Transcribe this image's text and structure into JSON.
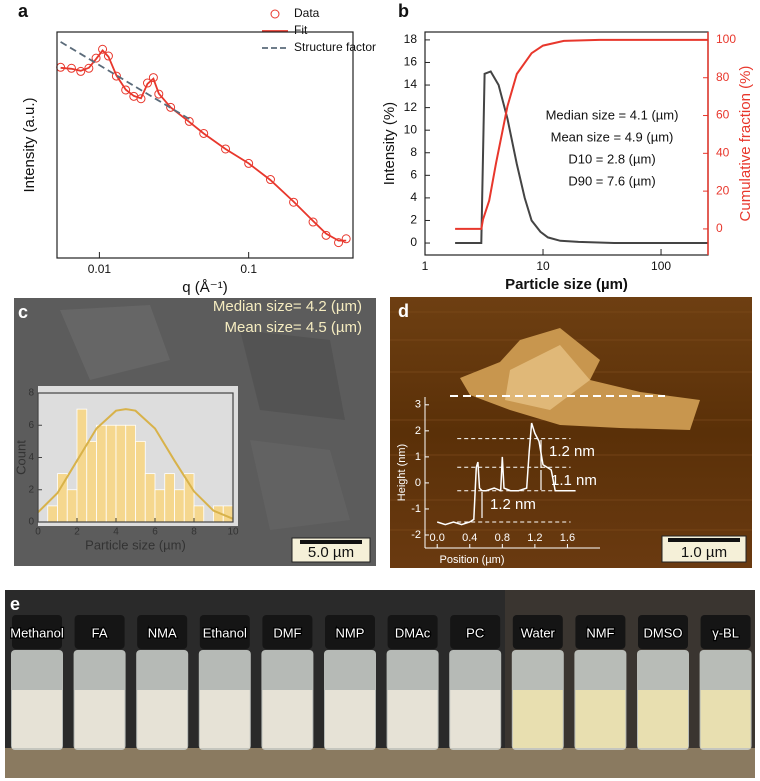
{
  "chart_data": [
    {
      "type": "scatter",
      "label": "a",
      "xlabel": "q (Å⁻¹)",
      "ylabel": "Intensity (a.u.)",
      "xlog": true,
      "ylog": true,
      "xlim": [
        0.0052,
        0.5
      ],
      "ylim": [
        1,
        1000
      ],
      "xticks": [
        0.01,
        0.1
      ],
      "legend": "upper right",
      "series": [
        {
          "name": "Data",
          "color": "#e8372c",
          "style": "marker",
          "x": [
            0.0055,
            0.0065,
            0.0075,
            0.0085,
            0.0095,
            0.0105,
            0.0115,
            0.013,
            0.015,
            0.017,
            0.019,
            0.021,
            0.023,
            0.025,
            0.03,
            0.04,
            0.05,
            0.07,
            0.1,
            0.14,
            0.2,
            0.27,
            0.33,
            0.4,
            0.45
          ],
          "values": [
            340,
            330,
            300,
            330,
            450,
            590,
            480,
            260,
            170,
            140,
            130,
            210,
            248,
            150,
            100,
            65,
            45,
            28,
            18,
            11,
            5.5,
            3,
            2.0,
            1.6,
            1.8
          ]
        },
        {
          "name": "Fit",
          "color": "#e8372c",
          "style": "line",
          "x": [
            0.0055,
            0.0065,
            0.0075,
            0.0085,
            0.0095,
            0.0105,
            0.0115,
            0.013,
            0.015,
            0.017,
            0.019,
            0.021,
            0.023,
            0.025,
            0.03,
            0.04,
            0.05,
            0.07,
            0.1,
            0.14,
            0.2,
            0.27,
            0.33,
            0.4,
            0.45
          ],
          "values": [
            335,
            325,
            305,
            335,
            440,
            570,
            470,
            265,
            172,
            142,
            132,
            205,
            240,
            152,
            100,
            64,
            45,
            28,
            18,
            10.8,
            5.6,
            3.1,
            2.1,
            1.7,
            1.7
          ]
        },
        {
          "name": "Structure factor",
          "color": "#5b6b7a",
          "style": "dashed",
          "x": [
            0.0055,
            0.04
          ],
          "values": [
            740,
            70
          ]
        }
      ]
    },
    {
      "type": "line",
      "label": "b",
      "xlabel": "Particle size (µm)",
      "ylabel": "Intensity (%)",
      "y2label": "Cumulative fraction (%)",
      "xlog": true,
      "xlim": [
        1,
        250
      ],
      "ylim": [
        -1.06,
        18.7
      ],
      "y2lim": [
        -13.8,
        104.2
      ],
      "xticks": [
        1,
        10,
        100
      ],
      "yticks": [
        0,
        2,
        4,
        6,
        8,
        10,
        12,
        14,
        16,
        18
      ],
      "y2ticks": [
        0,
        20,
        40,
        60,
        80,
        100
      ],
      "series": [
        {
          "name": "Intensity",
          "color": "#444444",
          "axis": "y",
          "x": [
            1.8,
            3.0,
            3.2,
            3.6,
            4.2,
            5,
            6,
            7,
            8,
            9.5,
            11,
            14,
            20,
            40,
            250
          ],
          "values": [
            0,
            0,
            15,
            15.2,
            14,
            11,
            7,
            4,
            2,
            1,
            0.5,
            0.2,
            0.1,
            0,
            0
          ]
        },
        {
          "name": "Cumulative fraction",
          "color": "#e8372c",
          "axis": "y2",
          "x": [
            1.8,
            3.0,
            3.1,
            3.5,
            4,
            5,
            6,
            8,
            10,
            15,
            30,
            250
          ],
          "values": [
            0,
            0,
            5,
            15,
            35,
            65,
            82,
            93,
            97,
            99.5,
            100,
            100
          ]
        }
      ],
      "annotations": [
        "Median size = 4.1 (µm)",
        "Mean size = 4.9 (µm)",
        "D10 =   2.8 (µm)",
        "D90 =   7.6 (µm)"
      ]
    },
    {
      "type": "histogram",
      "label": "c",
      "xlabel": "Particle size (µm)",
      "ylabel": "Count",
      "bins": [
        0,
        0.5,
        1,
        1.5,
        2,
        2.5,
        3,
        3.5,
        4,
        4.5,
        5,
        5.5,
        6,
        6.5,
        7,
        7.5,
        8,
        8.5,
        9,
        9.5,
        10
      ],
      "values": [
        0,
        1,
        3,
        2,
        7,
        5,
        6,
        6,
        6,
        6,
        5,
        3,
        2,
        3,
        2,
        3,
        1,
        0,
        1,
        1
      ],
      "color": "#f5d78e",
      "xlim": [
        0,
        10
      ],
      "ylim": [
        0,
        8
      ],
      "xticks": [
        0,
        2,
        4,
        6,
        8,
        10
      ],
      "yticks": [
        0,
        2,
        4,
        6,
        8
      ],
      "fit": {
        "color": "#d8b24a",
        "x": [
          0,
          1,
          2,
          3,
          4,
          4.5,
          5,
          6,
          7,
          8,
          9,
          10
        ],
        "values": [
          0.6,
          1.8,
          3.8,
          5.8,
          6.9,
          7.0,
          6.9,
          5.8,
          3.8,
          1.9,
          0.7,
          0.2
        ]
      },
      "annotations": [
        "Median size= 4.2 (µm)",
        "Mean size= 4.5 (µm)"
      ],
      "scale_bar": "5.0 µm"
    },
    {
      "type": "line",
      "label": "d",
      "xlabel": "Position (µm)",
      "ylabel": "Height (nm)",
      "xlim": [
        -0.15,
        2.0
      ],
      "ylim": [
        -2.5,
        3.3
      ],
      "xticks": [
        {
          "value": 0,
          "label": "0.0"
        },
        {
          "value": 0.4,
          "label": "0.4"
        },
        {
          "value": 0.8,
          "label": "0.8"
        },
        {
          "value": 1.2,
          "label": "1.2"
        },
        {
          "value": 1.6,
          "label": "1.6"
        }
      ],
      "yticks": [
        -2,
        -1,
        0,
        1,
        2,
        3
      ],
      "x": [
        0.0,
        0.1,
        0.2,
        0.3,
        0.4,
        0.45,
        0.48,
        0.5,
        0.52,
        0.55,
        0.6,
        0.7,
        0.78,
        0.8,
        0.82,
        0.9,
        1.0,
        1.1,
        1.13,
        1.16,
        1.2,
        1.25,
        1.3,
        1.35,
        1.4,
        1.45,
        1.5,
        1.6,
        1.7
      ],
      "values": [
        -1.5,
        -1.6,
        -1.5,
        -1.6,
        -1.5,
        -1.4,
        0.6,
        0.8,
        -0.2,
        -0.3,
        -0.3,
        -0.2,
        -0.3,
        1.0,
        -0.2,
        -0.3,
        -0.3,
        -0.2,
        1.2,
        2.3,
        1.9,
        1.6,
        0.7,
        0.6,
        0.5,
        -0.3,
        -0.3,
        -0.3,
        -0.3
      ],
      "color": "#ffffff",
      "reference_lines": [
        -1.5,
        -0.3,
        0.6,
        1.7
      ],
      "annotations": [
        "1.2 nm",
        "1.1 nm",
        "1.2 nm"
      ],
      "scale_bar": "1.0 µm"
    }
  ],
  "photo": {
    "label": "e",
    "solvents": [
      "Methanol",
      "FA",
      "NMA",
      "Ethanol",
      "DMF",
      "NMP",
      "DMAc",
      "PC",
      "Water",
      "NMF",
      "DMSO",
      "γ-BL"
    ]
  }
}
